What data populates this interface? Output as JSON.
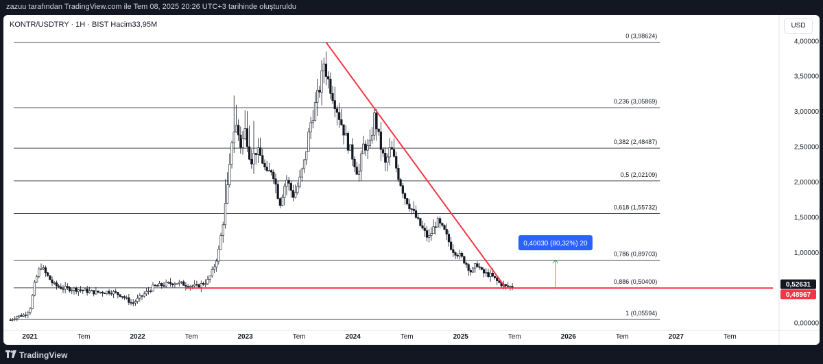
{
  "header": {
    "caption": "zazuu tarafından TradingView.com ile Tem 08, 2025 20:26 UTC+3 tarihinde oluşturuldu"
  },
  "symbol_info": "KONTR/USDTRY · 1H · BIST  Hacim33,95M",
  "currency_button": "USD",
  "footer": {
    "brand": "TradingView"
  },
  "chart_data": {
    "type": "candlestick",
    "symbol": "KONTR/USDTRY",
    "interval": "1H",
    "exchange": "BIST",
    "volume_label": "Hacim33,95M",
    "y_axis": {
      "min": -0.1,
      "max": 4.1,
      "ticks": [
        {
          "value": 4.0,
          "label": "4,00000"
        },
        {
          "value": 3.5,
          "label": "3,50000"
        },
        {
          "value": 3.0,
          "label": "3,00000"
        },
        {
          "value": 2.5,
          "label": "2,50000"
        },
        {
          "value": 2.0,
          "label": "2,00000"
        },
        {
          "value": 1.5,
          "label": "1,50000"
        },
        {
          "value": 1.0,
          "label": "1,00000"
        },
        {
          "value": 0.0,
          "label": "0,00000"
        }
      ]
    },
    "x_axis": {
      "ticks": [
        {
          "t": 2021.0,
          "label": "2021",
          "bold": true
        },
        {
          "t": 2021.5,
          "label": "Tem",
          "bold": false
        },
        {
          "t": 2022.0,
          "label": "2022",
          "bold": true
        },
        {
          "t": 2022.5,
          "label": "Tem",
          "bold": false
        },
        {
          "t": 2023.0,
          "label": "2023",
          "bold": true
        },
        {
          "t": 2023.5,
          "label": "Tem",
          "bold": false
        },
        {
          "t": 2024.0,
          "label": "2024",
          "bold": true
        },
        {
          "t": 2024.5,
          "label": "Tem",
          "bold": false
        },
        {
          "t": 2025.0,
          "label": "2025",
          "bold": true
        },
        {
          "t": 2025.5,
          "label": "Tem",
          "bold": false
        },
        {
          "t": 2026.0,
          "label": "2026",
          "bold": true
        },
        {
          "t": 2026.5,
          "label": "Tem",
          "bold": false
        },
        {
          "t": 2027.0,
          "label": "2027",
          "bold": true
        },
        {
          "t": 2027.5,
          "label": "Tem",
          "bold": false
        }
      ]
    },
    "fib_levels": [
      {
        "level": "0",
        "price": 3.98624,
        "label": "0 (3,98624)"
      },
      {
        "level": "0.236",
        "price": 3.05869,
        "label": "0,236 (3,05869)"
      },
      {
        "level": "0.382",
        "price": 2.48487,
        "label": "0,382 (2,48487)"
      },
      {
        "level": "0.5",
        "price": 2.02109,
        "label": "0,5 (2,02109)"
      },
      {
        "level": "0.618",
        "price": 1.55732,
        "label": "0,618 (1,55732)"
      },
      {
        "level": "0.786",
        "price": 0.89703,
        "label": "0,786 (0,89703)"
      },
      {
        "level": "0.886",
        "price": 0.504,
        "label": "0,886 (0,50400)"
      },
      {
        "level": "1",
        "price": 0.05594,
        "label": "1 (0,05594)"
      }
    ],
    "fib_start_t": 2020.85,
    "fib_end_t": 2026.85,
    "price_path": [
      [
        2020.82,
        0.05
      ],
      [
        2020.88,
        0.1
      ],
      [
        2020.95,
        0.12
      ],
      [
        2021.0,
        0.2
      ],
      [
        2021.05,
        0.6
      ],
      [
        2021.1,
        0.82
      ],
      [
        2021.15,
        0.7
      ],
      [
        2021.22,
        0.55
      ],
      [
        2021.3,
        0.5
      ],
      [
        2021.45,
        0.48
      ],
      [
        2021.6,
        0.44
      ],
      [
        2021.75,
        0.45
      ],
      [
        2021.85,
        0.4
      ],
      [
        2021.95,
        0.28
      ],
      [
        2022.05,
        0.4
      ],
      [
        2022.15,
        0.52
      ],
      [
        2022.25,
        0.55
      ],
      [
        2022.35,
        0.58
      ],
      [
        2022.45,
        0.55
      ],
      [
        2022.55,
        0.52
      ],
      [
        2022.65,
        0.6
      ],
      [
        2022.7,
        0.75
      ],
      [
        2022.75,
        1.0
      ],
      [
        2022.8,
        1.5
      ],
      [
        2022.85,
        2.1
      ],
      [
        2022.88,
        2.7
      ],
      [
        2022.92,
        2.8
      ],
      [
        2022.96,
        2.5
      ],
      [
        2023.0,
        2.75
      ],
      [
        2023.05,
        2.3
      ],
      [
        2023.1,
        2.45
      ],
      [
        2023.15,
        2.35
      ],
      [
        2023.2,
        2.1
      ],
      [
        2023.25,
        2.2
      ],
      [
        2023.32,
        1.7
      ],
      [
        2023.38,
        2.05
      ],
      [
        2023.45,
        1.8
      ],
      [
        2023.5,
        2.0
      ],
      [
        2023.55,
        2.3
      ],
      [
        2023.6,
        2.8
      ],
      [
        2023.65,
        3.1
      ],
      [
        2023.7,
        3.4
      ],
      [
        2023.73,
        3.7
      ],
      [
        2023.77,
        3.45
      ],
      [
        2023.82,
        3.2
      ],
      [
        2023.88,
        2.9
      ],
      [
        2023.95,
        2.55
      ],
      [
        2024.0,
        2.35
      ],
      [
        2024.05,
        2.1
      ],
      [
        2024.1,
        2.55
      ],
      [
        2024.15,
        2.45
      ],
      [
        2024.2,
        2.95
      ],
      [
        2024.25,
        2.55
      ],
      [
        2024.3,
        2.25
      ],
      [
        2024.35,
        2.5
      ],
      [
        2024.42,
        2.1
      ],
      [
        2024.48,
        1.8
      ],
      [
        2024.55,
        1.6
      ],
      [
        2024.62,
        1.4
      ],
      [
        2024.7,
        1.2
      ],
      [
        2024.78,
        1.45
      ],
      [
        2024.85,
        1.3
      ],
      [
        2024.92,
        1.05
      ],
      [
        2025.0,
        0.95
      ],
      [
        2025.05,
        0.85
      ],
      [
        2025.1,
        0.72
      ],
      [
        2025.15,
        0.85
      ],
      [
        2025.2,
        0.72
      ],
      [
        2025.28,
        0.68
      ],
      [
        2025.35,
        0.58
      ],
      [
        2025.42,
        0.52
      ],
      [
        2025.48,
        0.52
      ]
    ],
    "trendline": {
      "from": [
        2023.75,
        3.98624
      ],
      "to": [
        2025.42,
        0.5
      ]
    },
    "support_line": {
      "from": [
        2022.45,
        0.5
      ],
      "to": [
        2027.9,
        0.5
      ],
      "color": "#f23645"
    },
    "measure": {
      "t": 2025.88,
      "from": 0.5,
      "to": 0.9,
      "label": "0,40030 (80,32%) 20",
      "color": "#2962ff"
    },
    "price_labels": [
      {
        "value": 0.52631,
        "label": "0,52631",
        "color": "#131722"
      },
      {
        "value": 0.48967,
        "label": "0,48967",
        "color": "#f23645"
      }
    ],
    "colors": {
      "candle": "#131722",
      "fib_line": "#434651",
      "trendline": "#f23645",
      "measure_arrow": "#4caf50"
    }
  }
}
